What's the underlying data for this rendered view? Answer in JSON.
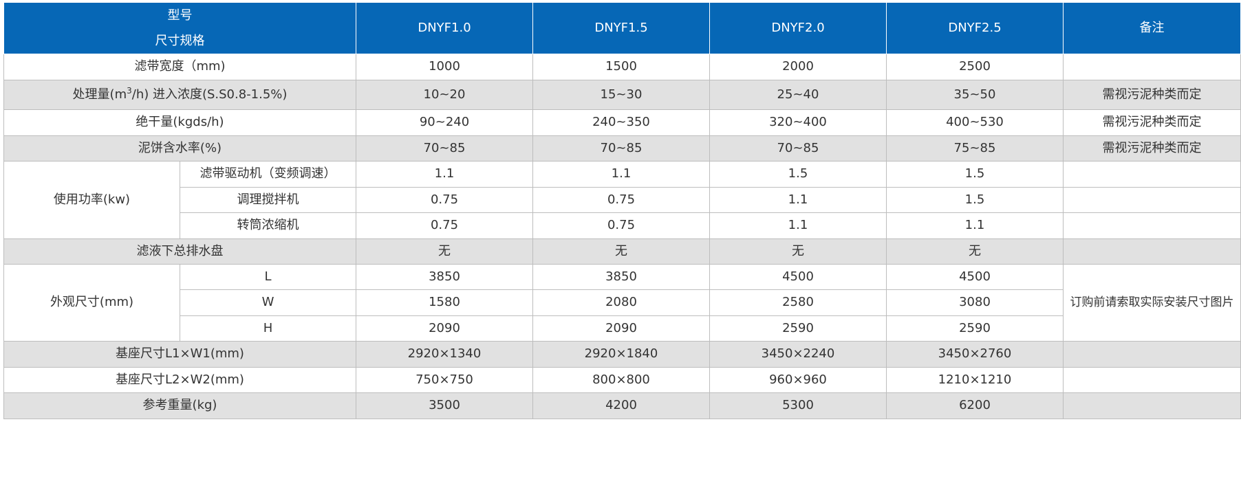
{
  "header": {
    "label_top": "型号",
    "label_bottom": "尺寸规格",
    "models": [
      "DNYF1.0",
      "DNYF1.5",
      "DNYF2.0",
      "DNYF2.5"
    ],
    "remarks": "备注"
  },
  "rows": {
    "belt_width": {
      "label": "滤带宽度（mm)",
      "values": [
        "1000",
        "1500",
        "2000",
        "2500"
      ],
      "remark": ""
    },
    "capacity": {
      "label_pre": "处理量(m",
      "label_sup": "3",
      "label_post": "/h) 进入浓度(S.S0.8-1.5%)",
      "values": [
        "10~20",
        "15~30",
        "25~40",
        "35~50"
      ],
      "remark": "需视污泥种类而定"
    },
    "dry_amount": {
      "label": "绝干量(kgds/h)",
      "values": [
        "90~240",
        "240~350",
        "320~400",
        "400~530"
      ],
      "remark": "需视污泥种类而定"
    },
    "cake_moisture": {
      "label": "泥饼含水率(%)",
      "values": [
        "70~85",
        "70~85",
        "70~85",
        "75~85"
      ],
      "remark": "需视污泥种类而定"
    },
    "power": {
      "label": "使用功率(kw)",
      "sub": [
        {
          "label": "滤带驱动机（变频调速）",
          "values": [
            "1.1",
            "1.1",
            "1.5",
            "1.5"
          ],
          "remark": ""
        },
        {
          "label": "调理搅拌机",
          "values": [
            "0.75",
            "0.75",
            "1.1",
            "1.5"
          ],
          "remark": ""
        },
        {
          "label": "转筒浓缩机",
          "values": [
            "0.75",
            "0.75",
            "1.1",
            "1.1"
          ],
          "remark": ""
        }
      ]
    },
    "drain_tray": {
      "label": "滤液下总排水盘",
      "values": [
        "无",
        "无",
        "无",
        "无"
      ],
      "remark": ""
    },
    "dimensions": {
      "label": "外观尺寸(mm)",
      "remark": "订购前请索取实际安装尺寸图片",
      "sub": [
        {
          "label": "L",
          "values": [
            "3850",
            "3850",
            "4500",
            "4500"
          ]
        },
        {
          "label": "W",
          "values": [
            "1580",
            "2080",
            "2580",
            "3080"
          ]
        },
        {
          "label": "H",
          "values": [
            "2090",
            "2090",
            "2590",
            "2590"
          ]
        }
      ]
    },
    "base_1": {
      "label": "基座尺寸L1×W1(mm)",
      "values": [
        "2920×1340",
        "2920×1840",
        "3450×2240",
        "3450×2760"
      ],
      "remark": ""
    },
    "base_2": {
      "label": "基座尺寸L2×W2(mm)",
      "values": [
        "750×750",
        "800×800",
        "960×960",
        "1210×1210"
      ],
      "remark": ""
    },
    "weight": {
      "label": "参考重量(kg)",
      "values": [
        "3500",
        "4200",
        "5300",
        "6200"
      ],
      "remark": ""
    }
  }
}
